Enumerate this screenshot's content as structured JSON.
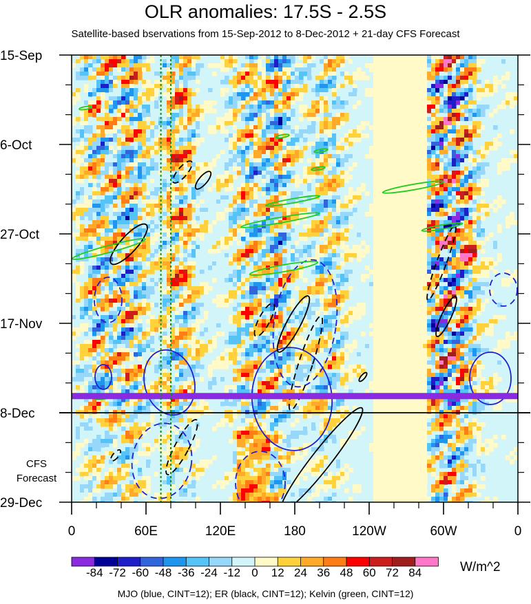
{
  "chart_data": {
    "type": "heatmap",
    "title": "OLR anomalies: 17.5S - 2.5S",
    "subtitle": "Satellite-based bservations from 15-Sep-2012 to 8-Dec-2012 + 21-day CFS Forecast",
    "x_axis": {
      "ticks": [
        "0",
        "60E",
        "120E",
        "180",
        "120W",
        "60W",
        "0"
      ],
      "tick_lon": [
        0,
        60,
        120,
        180,
        240,
        300,
        360
      ],
      "range": [
        0,
        360
      ]
    },
    "y_axis": {
      "ticks": [
        "15-Sep",
        "6-Oct",
        "27-Oct",
        "17-Nov",
        "8-Dec",
        "29-Dec"
      ],
      "tick_day": [
        0,
        21,
        42,
        63,
        84,
        105
      ],
      "range": [
        "15-Sep-2012",
        "29-Dec-2012"
      ],
      "observation_end": "8-Dec-2012"
    },
    "forecast_label": "CFS\nForecast",
    "colorbar": {
      "levels": [
        -84,
        -72,
        -60,
        -48,
        -36,
        -24,
        -12,
        0,
        12,
        24,
        36,
        48,
        60,
        72,
        84
      ],
      "labels": [
        "-84",
        "-72",
        "-60",
        "-48",
        "-36",
        "-24",
        "-12",
        "0",
        "12",
        "24",
        "36",
        "48",
        "60",
        "72",
        "84"
      ],
      "colors": [
        "#8a2be2",
        "#000096",
        "#1e1ec8",
        "#3264dc",
        "#1e96f0",
        "#55c3f5",
        "#96d7fa",
        "#d2f5fa",
        "#fffac8",
        "#ffd23c",
        "#ffaa28",
        "#ff7d14",
        "#ff0000",
        "#cd1e1e",
        "#a01e1e",
        "#ff78c8"
      ],
      "units": "W/m^2"
    },
    "footnote": "MJO (blue, CINT=12); ER (black, CINT=12); Kelvin (green, CINT=12)",
    "contour_legend": [
      {
        "name": "MJO",
        "color": "#2020d0"
      },
      {
        "name": "ER",
        "color": "#000000"
      },
      {
        "name": "Kelvin",
        "color": "#22cc22"
      }
    ],
    "missing_data_day": 80,
    "missing_data_color": "#8a2be2",
    "reference_longitudes": [
      72,
      80
    ]
  }
}
